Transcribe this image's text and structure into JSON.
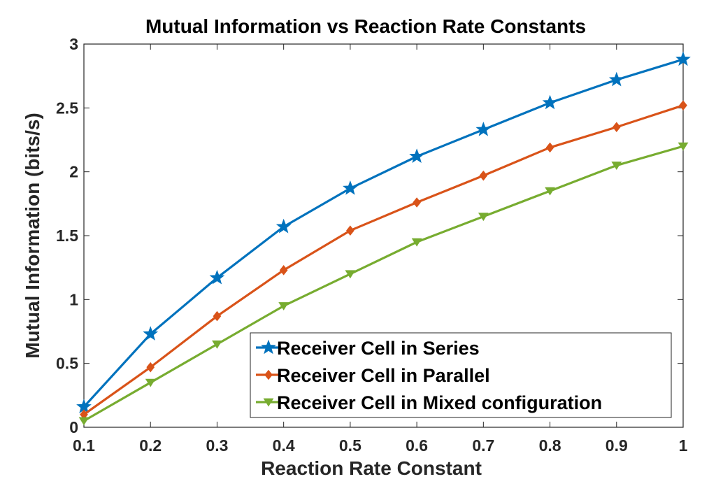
{
  "chart_data": {
    "type": "line",
    "title": "Mutual Information vs Reaction Rate Constants",
    "xlabel": "Reaction Rate Constant",
    "ylabel": "Mutual Information (bits/s)",
    "x": [
      0.1,
      0.2,
      0.3,
      0.4,
      0.5,
      0.6,
      0.7,
      0.8,
      0.9,
      1.0
    ],
    "xlim": [
      0.1,
      1.0
    ],
    "ylim": [
      0,
      3
    ],
    "x_ticks": [
      "0.1",
      "0.2",
      "0.3",
      "0.4",
      "0.5",
      "0.6",
      "0.7",
      "0.8",
      "0.9",
      "1"
    ],
    "y_ticks": [
      "0",
      "0.5",
      "1",
      "1.5",
      "2",
      "2.5",
      "3"
    ],
    "grid": false,
    "legend_position": "bottom-right",
    "series": [
      {
        "name": "Receiver Cell in Series",
        "color": "#0072BD",
        "marker": "star",
        "values": [
          0.16,
          0.73,
          1.17,
          1.57,
          1.87,
          2.12,
          2.33,
          2.54,
          2.72,
          2.88
        ]
      },
      {
        "name": "Receiver Cell in Parallel",
        "color": "#D95319",
        "marker": "diamond",
        "values": [
          0.1,
          0.47,
          0.87,
          1.23,
          1.54,
          1.76,
          1.97,
          2.19,
          2.35,
          2.52
        ]
      },
      {
        "name": "Receiver Cell in Mixed configuration",
        "color": "#77AC30",
        "marker": "triangle-down",
        "values": [
          0.05,
          0.35,
          0.65,
          0.95,
          1.2,
          1.45,
          1.65,
          1.85,
          2.05,
          2.2
        ]
      }
    ]
  }
}
